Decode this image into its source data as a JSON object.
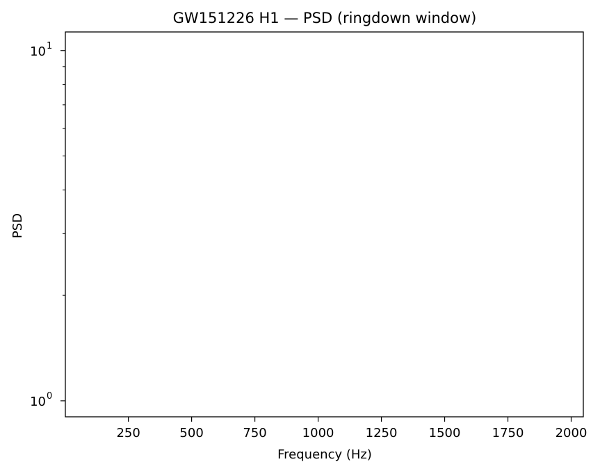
{
  "chart_data": {
    "type": "line",
    "title": "GW151226 H1 — PSD (ringdown window)",
    "xlabel": "Frequency (Hz)",
    "ylabel": "PSD",
    "xlim": [
      1,
      2048
    ],
    "ylim": [
      0.9,
      11.3
    ],
    "yscale": "log",
    "xticks": [
      250,
      500,
      750,
      1000,
      1250,
      1500,
      1750,
      2000
    ],
    "xtick_labels": [
      "250",
      "500",
      "750",
      "1000",
      "1250",
      "1500",
      "1750",
      "2000"
    ],
    "yticks_major": [
      {
        "value": 1,
        "base": "10",
        "exp": "0"
      },
      {
        "value": 10,
        "base": "10",
        "exp": "1"
      }
    ],
    "yticks_minor": [
      2,
      3,
      4,
      5,
      6,
      7,
      8,
      9
    ],
    "grid": false,
    "series": []
  }
}
